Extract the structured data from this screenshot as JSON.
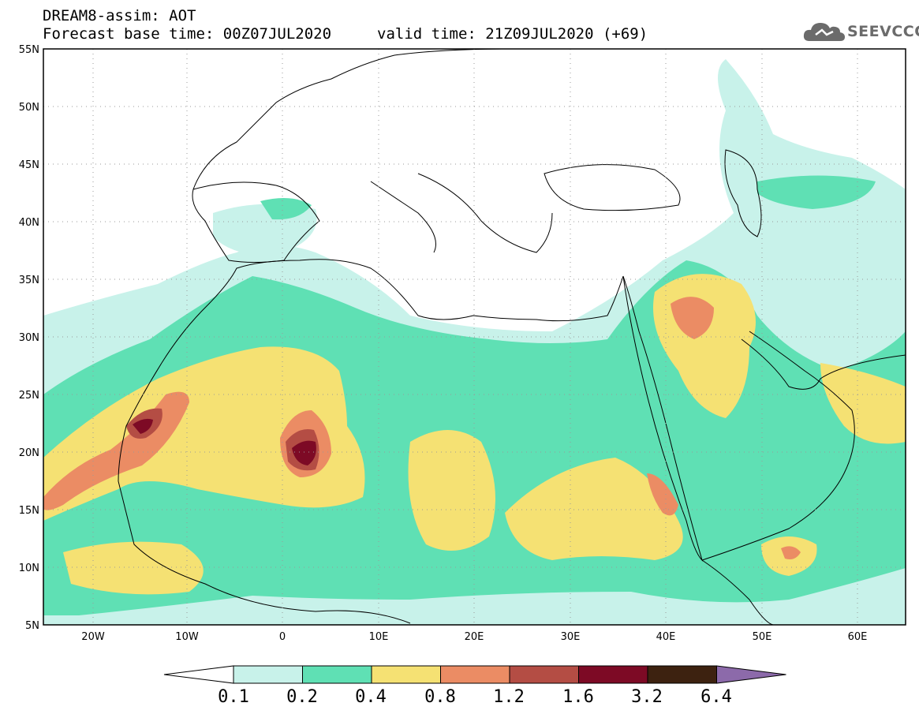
{
  "header": {
    "title": "DREAM8-assim: AOT",
    "forecast_base": "Forecast base time: 00Z07JUL2020",
    "valid_time": "valid time: 21Z09JUL2020 (+69)"
  },
  "logo": {
    "text": "SEEVCCC",
    "icon": "cloud-icon"
  },
  "map": {
    "lat_range": [
      5,
      55
    ],
    "lon_range": [
      -25,
      65
    ],
    "lat_ticks": [
      "55N",
      "50N",
      "45N",
      "40N",
      "35N",
      "30N",
      "25N",
      "20N",
      "15N",
      "10N",
      "5N"
    ],
    "lon_ticks": [
      "20W",
      "10W",
      "0",
      "10E",
      "20E",
      "30E",
      "40E",
      "50E",
      "60E"
    ],
    "grid": "dotted"
  },
  "colorbar": {
    "labels": [
      "0.1",
      "0.2",
      "0.4",
      "0.8",
      "1.2",
      "1.6",
      "3.2",
      "6.4"
    ],
    "colors": [
      "#c8f2ea",
      "#5fe0b4",
      "#f5e173",
      "#eb8c64",
      "#b44d44",
      "#7d0a25",
      "#3d2210",
      "#8c6aaa"
    ],
    "under_color": "#ffffff"
  }
}
